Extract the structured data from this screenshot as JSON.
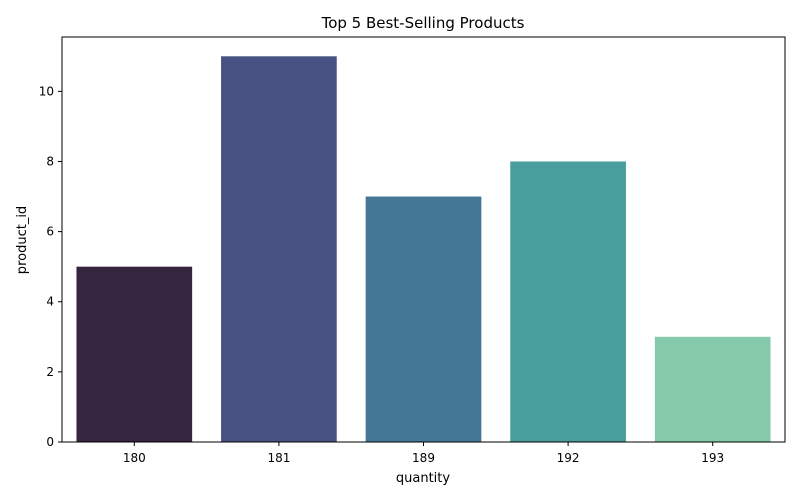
{
  "chart_data": {
    "type": "bar",
    "title": "Top 5 Best-Selling Products",
    "xlabel": "quantity",
    "ylabel": "product_id",
    "categories": [
      "180",
      "181",
      "189",
      "192",
      "193"
    ],
    "values": [
      5,
      11,
      7,
      8,
      3
    ],
    "colors": [
      "#35253f",
      "#475283",
      "#437795",
      "#489d9d",
      "#86c8aa"
    ],
    "ylim": [
      0,
      11.55
    ],
    "yticks": [
      0,
      2,
      4,
      6,
      8,
      10
    ],
    "grid": false,
    "legend": "none"
  }
}
